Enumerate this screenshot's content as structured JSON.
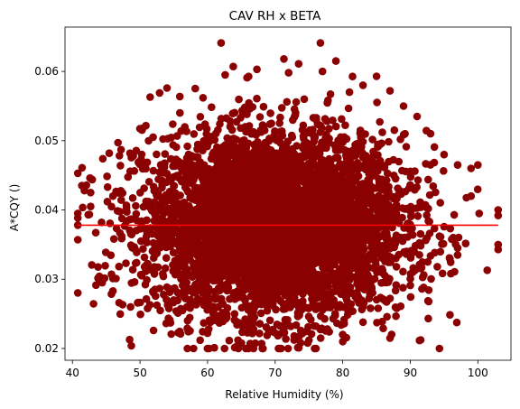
{
  "chart_data": {
    "type": "scatter",
    "title": "CAV RH x BETA",
    "xlabel": "Relative Humidity (%)",
    "ylabel": "A*CQY ()",
    "xlim": [
      38.9,
      104.9
    ],
    "ylim": [
      0.0183,
      0.0664
    ],
    "xticks": [
      40,
      50,
      60,
      70,
      80,
      90,
      100
    ],
    "yticks": [
      0.02,
      0.03,
      0.04,
      0.05,
      0.06
    ],
    "xtick_labels": [
      "40",
      "50",
      "60",
      "70",
      "80",
      "90",
      "100"
    ],
    "ytick_labels": [
      "0.02",
      "0.03",
      "0.04",
      "0.05",
      "0.06"
    ],
    "grid": false,
    "legend": "none",
    "colors": {
      "points": "#8b0000",
      "fit_line": "#ff0000"
    },
    "scatter_cloud": {
      "description": "dense cloud of points",
      "x_center": 70,
      "x_spread": 9.5,
      "y_center": 0.0378,
      "y_spread": 0.0065,
      "n_points": 5000
    },
    "series": [
      {
        "type": "scatter",
        "points": [
          [
            40.8,
            0.0395
          ],
          [
            40.8,
            0.0357
          ],
          [
            40.8,
            0.0378
          ],
          [
            42.6,
            0.0446
          ],
          [
            42.7,
            0.0425
          ],
          [
            42.7,
            0.0405
          ],
          [
            44.5,
            0.0474
          ],
          [
            44.4,
            0.0295
          ],
          [
            45.2,
            0.0433
          ],
          [
            46.0,
            0.0301
          ],
          [
            46.0,
            0.0283
          ],
          [
            46.9,
            0.0266
          ],
          [
            47.2,
            0.0487
          ],
          [
            47.1,
            0.0464
          ],
          [
            48.6,
            0.026
          ],
          [
            49.0,
            0.0478
          ],
          [
            49.2,
            0.0296
          ],
          [
            50.4,
            0.0518
          ],
          [
            51.5,
            0.0563
          ],
          [
            52.9,
            0.0569
          ],
          [
            54.0,
            0.0576
          ],
          [
            52.0,
            0.0226
          ],
          [
            54.5,
            0.0237
          ],
          [
            56.0,
            0.0221
          ],
          [
            58.9,
            0.0212
          ],
          [
            61.0,
            0.0201
          ],
          [
            62.0,
            0.0641
          ],
          [
            62.6,
            0.0595
          ],
          [
            63.8,
            0.0607
          ],
          [
            67.3,
            0.0603
          ],
          [
            71.3,
            0.0618
          ],
          [
            72.0,
            0.0598
          ],
          [
            74.3,
            0.056
          ],
          [
            76.7,
            0.0641
          ],
          [
            77.0,
            0.06
          ],
          [
            79.0,
            0.0615
          ],
          [
            81.0,
            0.057
          ],
          [
            83.0,
            0.058
          ],
          [
            85.0,
            0.0593
          ],
          [
            87.0,
            0.0572
          ],
          [
            89.0,
            0.055
          ],
          [
            91.0,
            0.0535
          ],
          [
            93.0,
            0.051
          ],
          [
            95.0,
            0.048
          ],
          [
            97.0,
            0.0465
          ],
          [
            99.0,
            0.046
          ],
          [
            100.0,
            0.0465
          ],
          [
            100.2,
            0.0395
          ],
          [
            96.5,
            0.0393
          ],
          [
            99.0,
            0.042
          ],
          [
            103.0,
            0.04
          ],
          [
            103.0,
            0.0392
          ],
          [
            103.0,
            0.035
          ],
          [
            103.0,
            0.0343
          ],
          [
            97.0,
            0.0345
          ],
          [
            97.0,
            0.0335
          ],
          [
            96.0,
            0.0308
          ],
          [
            94.0,
            0.0318
          ],
          [
            92.0,
            0.0306
          ],
          [
            90.0,
            0.0291
          ],
          [
            88.0,
            0.0258
          ],
          [
            87.0,
            0.0215
          ],
          [
            86.0,
            0.0229
          ],
          [
            83.0,
            0.0238
          ],
          [
            80.0,
            0.022
          ],
          [
            78.0,
            0.0224
          ],
          [
            75.0,
            0.0212
          ],
          [
            73.5,
            0.0201
          ],
          [
            70.5,
            0.02
          ],
          [
            68.0,
            0.0207
          ],
          [
            64.5,
            0.0212
          ],
          [
            60.0,
            0.0222
          ],
          [
            57.0,
            0.0229
          ],
          [
            55.0,
            0.027
          ],
          [
            53.0,
            0.0255
          ]
        ]
      },
      {
        "type": "line",
        "x": [
          40.8,
          103.0
        ],
        "y": [
          0.0378,
          0.0378
        ]
      }
    ]
  }
}
